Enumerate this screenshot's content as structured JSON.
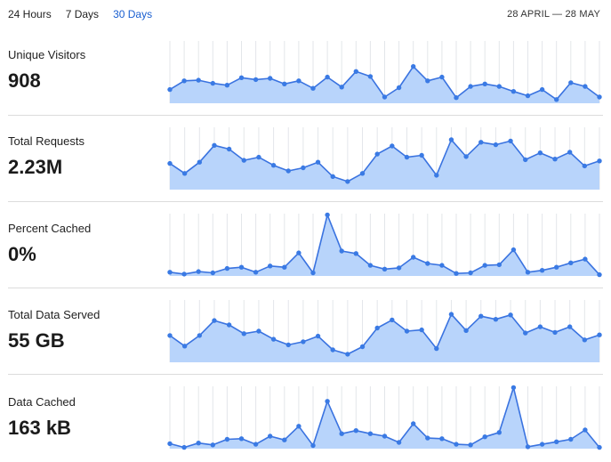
{
  "tabs": [
    {
      "label": "24 Hours",
      "active": false
    },
    {
      "label": "7 Days",
      "active": false
    },
    {
      "label": "30 Days",
      "active": true
    }
  ],
  "date_range": "28 APRIL — 28 MAY",
  "colors": {
    "accent": "#1a5fd0",
    "line": "#3a73e0",
    "fill": "#b8d4fb"
  },
  "metrics": [
    {
      "label": "Unique Visitors",
      "value": "908"
    },
    {
      "label": "Total Requests",
      "value": "2.23M"
    },
    {
      "label": "Percent Cached",
      "value": "0%"
    },
    {
      "label": "Total Data Served",
      "value": "55 GB"
    },
    {
      "label": "Data Cached",
      "value": "163 kB"
    }
  ],
  "chart_data": [
    {
      "type": "area",
      "series": [
        {
          "values": [
            0.22,
            0.36,
            0.37,
            0.32,
            0.29,
            0.41,
            0.38,
            0.4,
            0.31,
            0.36,
            0.24,
            0.42,
            0.26,
            0.51,
            0.43,
            0.1,
            0.25,
            0.59,
            0.36,
            0.42,
            0.09,
            0.27,
            0.31,
            0.27,
            0.19,
            0.12,
            0.22,
            0.06,
            0.33,
            0.27,
            0.1
          ]
        }
      ]
    },
    {
      "type": "area",
      "series": [
        {
          "values": [
            0.42,
            0.26,
            0.44,
            0.71,
            0.65,
            0.47,
            0.52,
            0.39,
            0.3,
            0.35,
            0.44,
            0.21,
            0.13,
            0.26,
            0.57,
            0.7,
            0.52,
            0.55,
            0.23,
            0.8,
            0.53,
            0.76,
            0.72,
            0.78,
            0.48,
            0.59,
            0.49,
            0.6,
            0.38,
            0.46
          ]
        }
      ]
    },
    {
      "type": "area",
      "series": [
        {
          "values": [
            0.06,
            0.03,
            0.07,
            0.05,
            0.12,
            0.14,
            0.06,
            0.16,
            0.14,
            0.37,
            0.05,
            0.98,
            0.4,
            0.36,
            0.17,
            0.11,
            0.13,
            0.3,
            0.2,
            0.17,
            0.04,
            0.05,
            0.17,
            0.18,
            0.42,
            0.06,
            0.09,
            0.14,
            0.21,
            0.27,
            0.02
          ]
        }
      ]
    },
    {
      "type": "area",
      "series": [
        {
          "values": [
            0.43,
            0.26,
            0.43,
            0.67,
            0.6,
            0.46,
            0.5,
            0.37,
            0.28,
            0.33,
            0.42,
            0.2,
            0.13,
            0.25,
            0.55,
            0.68,
            0.5,
            0.52,
            0.22,
            0.77,
            0.51,
            0.74,
            0.69,
            0.76,
            0.47,
            0.57,
            0.48,
            0.57,
            0.36,
            0.44
          ]
        }
      ]
    },
    {
      "type": "area",
      "series": [
        {
          "values": [
            0.08,
            0.02,
            0.09,
            0.06,
            0.15,
            0.16,
            0.07,
            0.2,
            0.14,
            0.36,
            0.05,
            0.76,
            0.24,
            0.29,
            0.24,
            0.2,
            0.1,
            0.4,
            0.17,
            0.16,
            0.07,
            0.06,
            0.19,
            0.26,
            0.98,
            0.03,
            0.07,
            0.11,
            0.15,
            0.3,
            0.02
          ]
        }
      ]
    }
  ]
}
